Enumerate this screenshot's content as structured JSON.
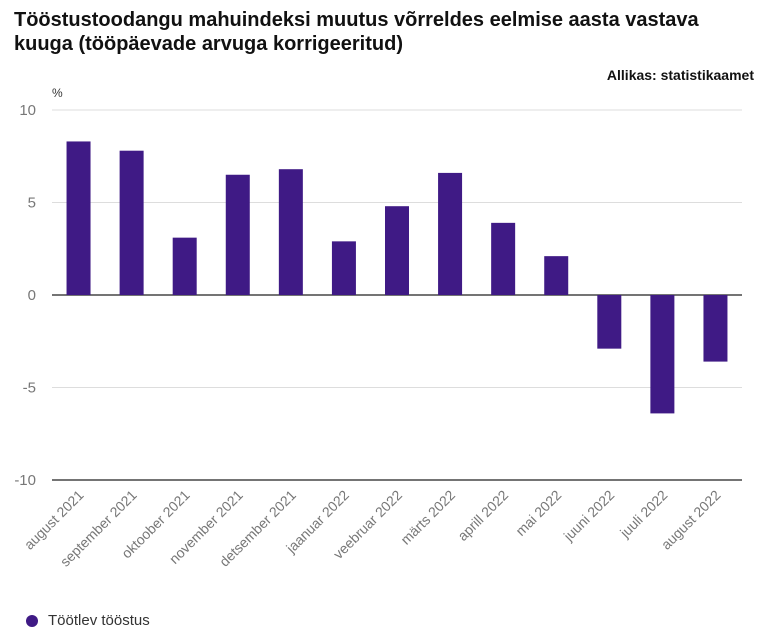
{
  "header": {
    "title": "Tööstustoodangu mahuindeksi muutus võrreldes eelmise aasta vastava kuuga (tööpäevade arvuga korrigeeritud)",
    "source": "Allikas: statistikaamet"
  },
  "colors": {
    "bar": "#3f1a85",
    "grid": "#dddddd",
    "zero_line": "#222222",
    "tick_text": "#777777"
  },
  "chart_data": {
    "type": "bar",
    "ylabel": "%",
    "ylim": [
      -10,
      10
    ],
    "yticks": [
      10,
      5,
      0,
      -5,
      -10
    ],
    "ytick_labels": [
      "10",
      "5",
      "0",
      "-5",
      "-10"
    ],
    "categories": [
      "august 2021",
      "september 2021",
      "oktoober 2021",
      "november 2021",
      "detsember 2021",
      "jaanuar 2022",
      "veebruar 2022",
      "märts 2022",
      "aprill 2022",
      "mai 2022",
      "juuni 2022",
      "juuli 2022",
      "august 2022"
    ],
    "series": [
      {
        "name": "Töötlev tööstus",
        "values": [
          8.3,
          7.8,
          3.1,
          6.5,
          6.8,
          2.9,
          4.8,
          6.6,
          3.9,
          2.1,
          -2.9,
          -6.4,
          -3.6
        ]
      }
    ],
    "grid": true,
    "legend": "bottom-left"
  }
}
